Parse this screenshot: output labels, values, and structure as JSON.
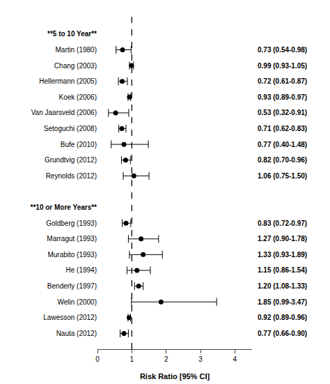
{
  "chart_data": {
    "type": "forest",
    "xlabel": "Risk Ratio [95% CI]",
    "xlim": [
      0,
      4.5
    ],
    "xticks": [
      0,
      1,
      2,
      3,
      4
    ],
    "vline": 1.0,
    "categories": [
      "**5 to 10 Year**",
      "Martin (1980)",
      "Chang (2003)",
      "Hellermann (2005)",
      "Koek (2006)",
      "Van Jaarsveld (2006)",
      "Setoguchi (2008)",
      "Bufe (2010)",
      "Grundtvig (2012)",
      "Reynolds (2012)",
      null,
      "**10 or More Years**",
      "Goldberg (1993)",
      "Marragut (1993)",
      "Murabito (1993)",
      "He (1994)",
      "Benderly (1997)",
      "Welin (2000)",
      "Lawesson (2012)",
      "Nauta (2012)"
    ],
    "values": [
      null,
      0.73,
      0.99,
      0.72,
      0.93,
      0.53,
      0.71,
      0.77,
      0.82,
      1.06,
      null,
      null,
      0.83,
      1.27,
      1.33,
      1.15,
      1.2,
      1.85,
      0.92,
      0.77
    ],
    "ci_low": [
      null,
      0.54,
      0.93,
      0.61,
      0.89,
      0.32,
      0.62,
      0.4,
      0.7,
      0.75,
      null,
      null,
      0.72,
      0.9,
      0.93,
      0.86,
      1.08,
      0.99,
      0.89,
      0.66
    ],
    "ci_high": [
      null,
      0.98,
      1.05,
      0.87,
      0.97,
      0.91,
      0.83,
      1.48,
      0.96,
      1.5,
      null,
      null,
      0.97,
      1.78,
      1.89,
      1.54,
      1.33,
      3.47,
      0.96,
      0.9
    ],
    "value_labels": [
      null,
      "0.73 (0.54-0.98)",
      "0.99 (0.93-1.05)",
      "0.72 (0.61-0.87)",
      "0.93 (0.89-0.97)",
      "0.53 (0.32-0.91)",
      "0.71 (0.62-0.83)",
      "0.77 (0.40-1.48)",
      "0.82 (0.70-0.96)",
      "1.06 (0.75-1.50)",
      null,
      null,
      "0.83 (0.72-0.97)",
      "1.27 (0.90-1.78)",
      "1.33 (0.93-1.89)",
      "1.15 (0.86-1.54)",
      "1.20 (1.08-1.33)",
      "1.85 (0.99-3.47)",
      "0.92 (0.89-0.96)",
      "0.77 (0.66-0.90)"
    ],
    "data_labels": true,
    "color": "#000000",
    "marker": "circle",
    "grid": false
  }
}
